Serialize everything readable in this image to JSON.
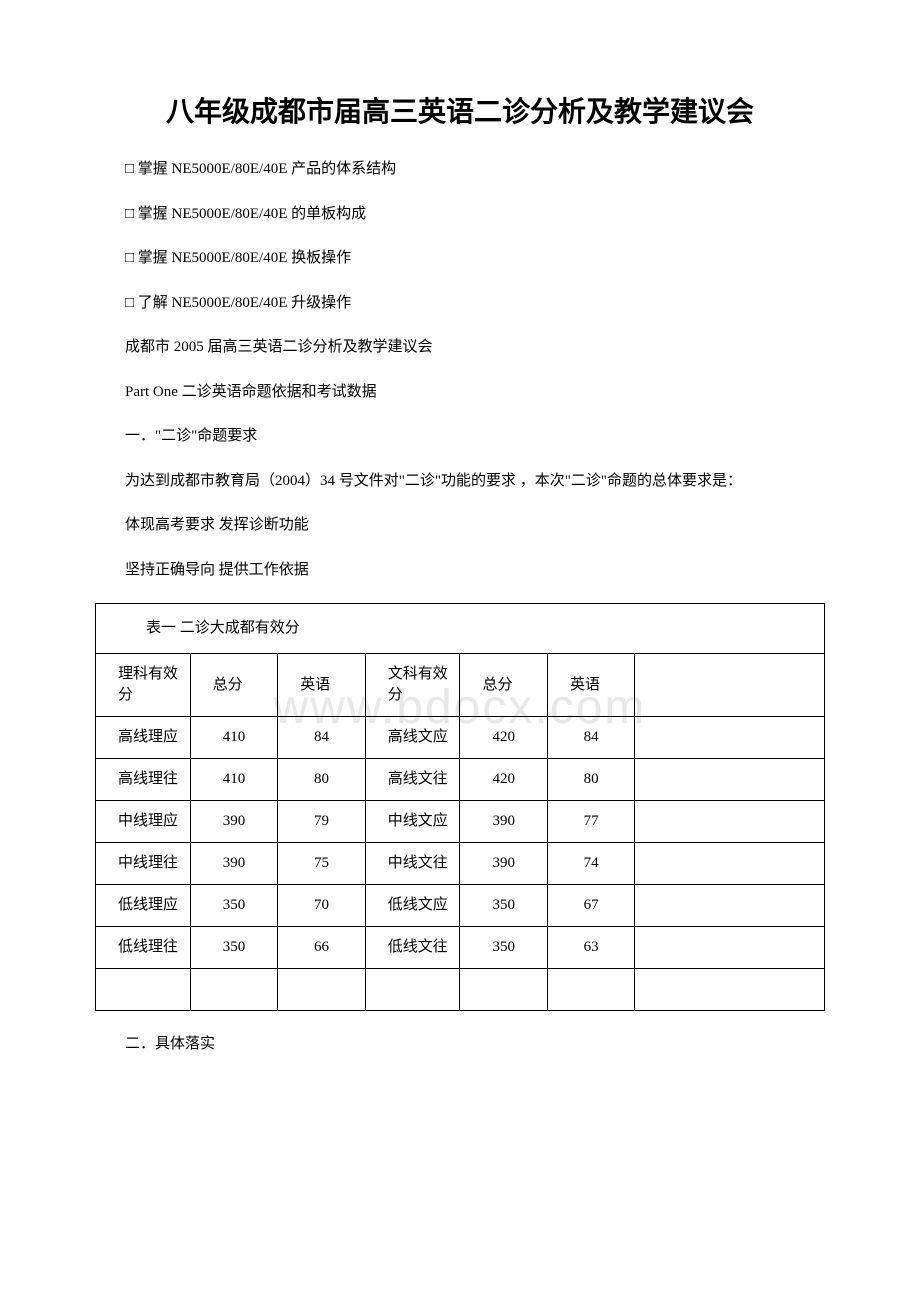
{
  "title": "八年级成都市届高三英语二诊分析及教学建议会",
  "bullets": [
    "□ 掌握 NE5000E/80E/40E 产品的体系结构",
    "□ 掌握 NE5000E/80E/40E 的单板构成",
    "□ 掌握 NE5000E/80E/40E 换板操作",
    "□ 了解 NE5000E/80E/40E 升级操作"
  ],
  "lines": [
    "成都市 2005 届高三英语二诊分析及教学建议会",
    "Part One 二诊英语命题依据和考试数据",
    "一．\"二诊\"命题要求",
    "为达到成都市教育局（2004）34 号文件对\"二诊\"功能的要求 ，本次\"二诊\"命题的总体要求是：",
    "体现高考要求 发挥诊断功能",
    "坚持正确导向 提供工作依据"
  ],
  "table": {
    "caption": "表一 二诊大成都有效分",
    "header": [
      "理科有效分",
      "总分",
      "英语",
      "文科有效分",
      "总分",
      "英语"
    ],
    "rows": [
      [
        "高线理应",
        "410",
        "84",
        "高线文应",
        "420",
        "84"
      ],
      [
        "高线理往",
        "410",
        "80",
        "高线文往",
        "420",
        "80"
      ],
      [
        "中线理应",
        "390",
        "79",
        "中线文应",
        "390",
        "77"
      ],
      [
        "中线理往",
        "390",
        "75",
        "中线文往",
        "390",
        "74"
      ],
      [
        "低线理应",
        "350",
        "70",
        "低线文应",
        "350",
        "67"
      ],
      [
        "低线理往",
        "350",
        "66",
        "低线文往",
        "350",
        "63"
      ]
    ]
  },
  "footer": "二．具体落实",
  "watermark": "www.bdocx.com"
}
